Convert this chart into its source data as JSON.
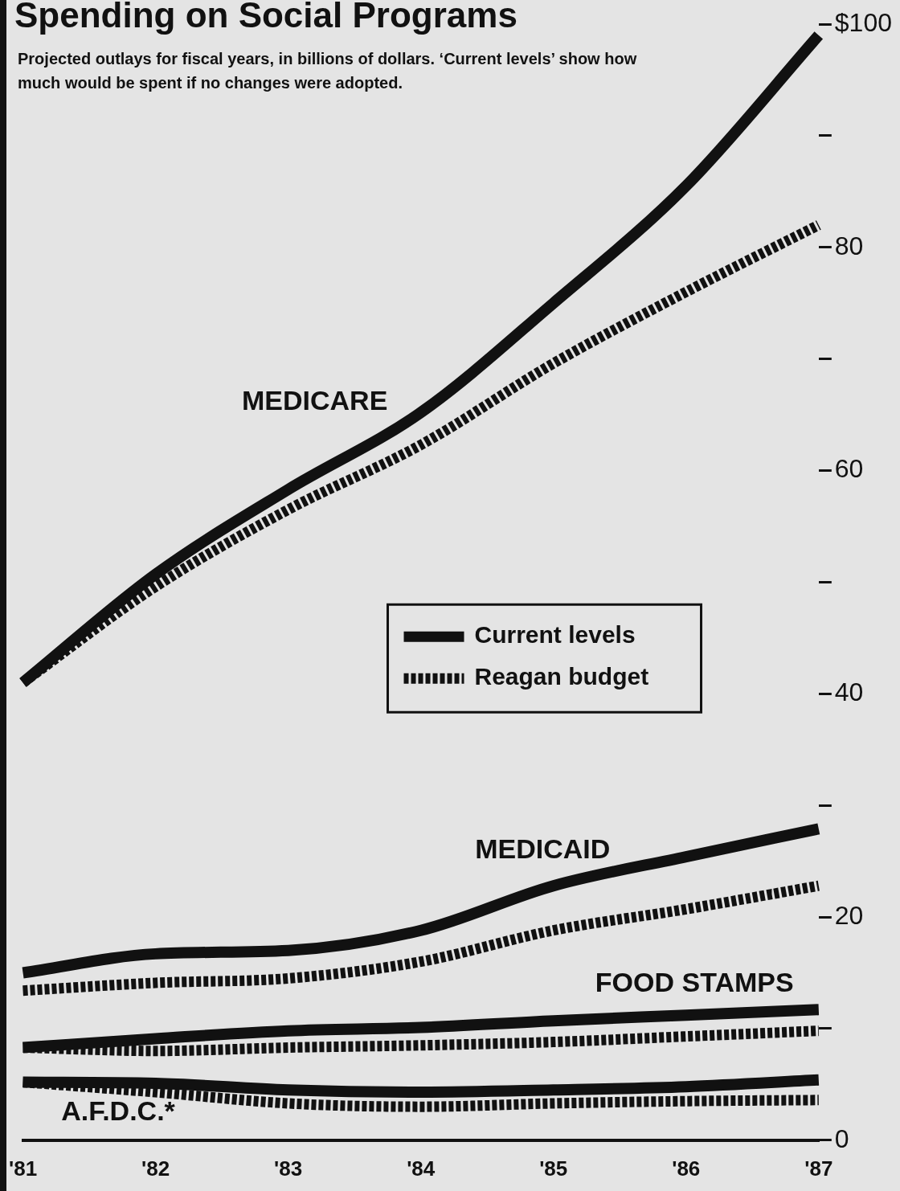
{
  "chart_data": {
    "type": "line",
    "title": "Spending on Social Programs",
    "subtitle": "Projected outlays for fiscal years, in billions of dollars. ‘Current levels’ show how much would be spent if no changes were adopted.",
    "categories": [
      "'81",
      "'82",
      "'83",
      "'84",
      "'85",
      "'86",
      "'87"
    ],
    "series": [
      {
        "name": "Current levels",
        "color": "#111111",
        "line_style": "solid",
        "values": [
          41,
          50.7,
          58.3,
          65.2,
          75,
          85.5,
          99
        ]
      },
      {
        "name": "Reagan budget",
        "color": "#111111",
        "line_style": "dashed",
        "values": [
          41,
          49.6,
          56.5,
          62.3,
          69.6,
          76,
          82
        ]
      },
      {
        "color": "#111111",
        "line_style": "solid",
        "values": [
          15,
          16.7,
          17,
          18.8,
          22.8,
          25.4,
          27.9
        ]
      },
      {
        "color": "#111111",
        "line_style": "dashed",
        "values": [
          13.4,
          14.1,
          14.5,
          16,
          18.8,
          20.7,
          22.8
        ]
      },
      {
        "color": "#111111",
        "line_style": "solid",
        "values": [
          8.3,
          9.1,
          9.8,
          10.1,
          10.7,
          11.2,
          11.7
        ]
      },
      {
        "color": "#111111",
        "line_style": "dashed",
        "values": [
          8.3,
          8,
          8.3,
          8.5,
          8.8,
          9.3,
          9.8
        ]
      },
      {
        "color": "#111111",
        "line_style": "solid",
        "values": [
          5.2,
          5.1,
          4.5,
          4.3,
          4.5,
          4.8,
          5.4
        ]
      },
      {
        "color": "#111111",
        "line_style": "dashed",
        "values": [
          5.2,
          4.3,
          3.3,
          3,
          3.3,
          3.5,
          3.6
        ]
      }
    ],
    "annotations": [
      "MEDICARE",
      "MEDICAID",
      "FOOD STAMPS",
      "A.F.D.C.*"
    ],
    "ylim": [
      0,
      100
    ],
    "yticks": [
      0,
      {
        "value": 10,
        "label": null
      },
      20,
      {
        "value": 30,
        "label": null
      },
      40,
      {
        "value": 50,
        "label": null
      },
      60,
      {
        "value": 70,
        "label": null
      },
      80,
      {
        "value": 90,
        "label": null
      },
      {
        "value": 100,
        "label": "$100"
      }
    ],
    "grid": false,
    "legend": "center right",
    "marker": "none"
  }
}
